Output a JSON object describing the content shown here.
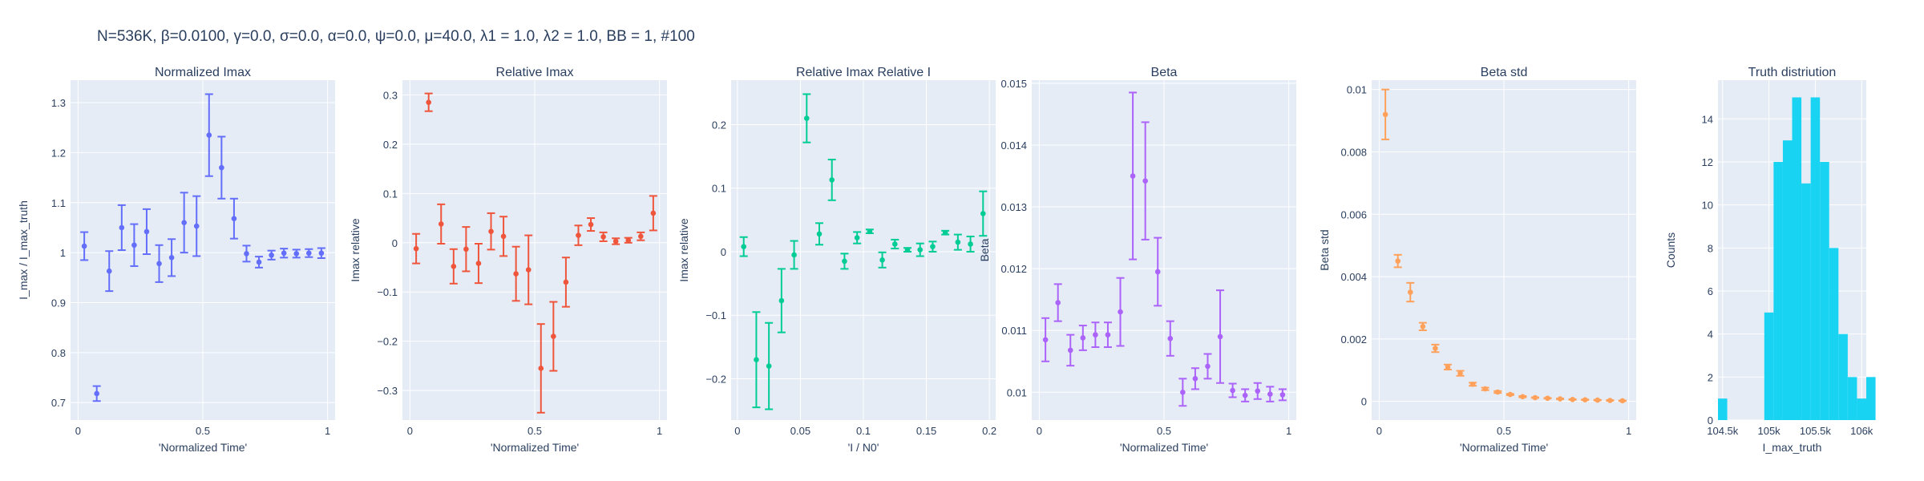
{
  "figure": {
    "title": "N=536K, β=0.0100, γ=0.0, σ=0.0,  α=0.0, ψ=0.0, μ=40.0, λ1 = 1.0, λ2 = 1.0, BB = 1, #100"
  },
  "chart_data": [
    {
      "type": "scatter",
      "title": "Normalized Imax",
      "xlabel": "'Normalized Time'",
      "ylabel": "I_max / I_max_truth",
      "color": "#636efa",
      "xlim": [
        -0.03,
        1.03
      ],
      "ylim": [
        0.665,
        1.345
      ],
      "xticks": [
        {
          "v": 0,
          "t": "0"
        },
        {
          "v": 0.5,
          "t": "0.5"
        },
        {
          "v": 1,
          "t": "1"
        }
      ],
      "yticks": [
        {
          "v": 0.7,
          "t": "0.7"
        },
        {
          "v": 0.8,
          "t": "0.8"
        },
        {
          "v": 0.9,
          "t": "0.9"
        },
        {
          "v": 1.0,
          "t": "1"
        },
        {
          "v": 1.1,
          "t": "1.1"
        },
        {
          "v": 1.2,
          "t": "1.2"
        },
        {
          "v": 1.3,
          "t": "1.3"
        }
      ],
      "x": [
        0.025,
        0.075,
        0.125,
        0.175,
        0.225,
        0.275,
        0.325,
        0.375,
        0.425,
        0.475,
        0.525,
        0.575,
        0.625,
        0.675,
        0.725,
        0.775,
        0.825,
        0.875,
        0.925,
        0.975
      ],
      "y": [
        1.013,
        0.718,
        0.963,
        1.05,
        1.015,
        1.042,
        0.978,
        0.99,
        1.06,
        1.053,
        1.235,
        1.17,
        1.068,
        0.998,
        0.981,
        0.995,
        0.999,
        0.998,
        0.999,
        0.999
      ],
      "err": [
        0.028,
        0.015,
        0.04,
        0.045,
        0.042,
        0.045,
        0.037,
        0.037,
        0.06,
        0.06,
        0.082,
        0.062,
        0.04,
        0.016,
        0.011,
        0.009,
        0.009,
        0.008,
        0.008,
        0.01
      ]
    },
    {
      "type": "scatter",
      "title": "Relative Imax",
      "xlabel": "'Normalized Time'",
      "ylabel": "Imax relative",
      "color": "#ef553b",
      "xlim": [
        -0.03,
        1.03
      ],
      "ylim": [
        -0.36,
        0.33
      ],
      "xticks": [
        {
          "v": 0,
          "t": "0"
        },
        {
          "v": 0.5,
          "t": "0.5"
        },
        {
          "v": 1,
          "t": "1"
        }
      ],
      "yticks": [
        {
          "v": -0.3,
          "t": "−0.3"
        },
        {
          "v": -0.2,
          "t": "−0.2"
        },
        {
          "v": -0.1,
          "t": "−0.1"
        },
        {
          "v": 0,
          "t": "0"
        },
        {
          "v": 0.1,
          "t": "0.1"
        },
        {
          "v": 0.2,
          "t": "0.2"
        },
        {
          "v": 0.3,
          "t": "0.3"
        }
      ],
      "x": [
        0.025,
        0.075,
        0.125,
        0.175,
        0.225,
        0.275,
        0.325,
        0.375,
        0.425,
        0.475,
        0.525,
        0.575,
        0.625,
        0.675,
        0.725,
        0.775,
        0.825,
        0.875,
        0.925,
        0.975
      ],
      "y": [
        -0.012,
        0.285,
        0.038,
        -0.048,
        -0.013,
        -0.042,
        0.023,
        0.013,
        -0.063,
        -0.055,
        -0.255,
        -0.19,
        -0.08,
        0.015,
        0.037,
        0.012,
        0.003,
        0.005,
        0.013,
        0.06
      ],
      "err": [
        0.03,
        0.018,
        0.04,
        0.035,
        0.045,
        0.04,
        0.037,
        0.04,
        0.055,
        0.07,
        0.09,
        0.07,
        0.05,
        0.02,
        0.013,
        0.009,
        0.006,
        0.005,
        0.008,
        0.035
      ]
    },
    {
      "type": "scatter",
      "title": "Relative Imax Relative I",
      "xlabel": "'I / N0'",
      "ylabel": "Imax relative",
      "color": "#00cc96",
      "xlim": [
        -0.005,
        0.205
      ],
      "ylim": [
        -0.265,
        0.27
      ],
      "xticks": [
        {
          "v": 0,
          "t": "0"
        },
        {
          "v": 0.05,
          "t": "0.05"
        },
        {
          "v": 0.1,
          "t": "0.1"
        },
        {
          "v": 0.15,
          "t": "0.15"
        },
        {
          "v": 0.2,
          "t": "0.2"
        }
      ],
      "yticks": [
        {
          "v": -0.2,
          "t": "−0.2"
        },
        {
          "v": -0.1,
          "t": "−0.1"
        },
        {
          "v": 0,
          "t": "0"
        },
        {
          "v": 0.1,
          "t": "0.1"
        },
        {
          "v": 0.2,
          "t": "0.2"
        }
      ],
      "x": [
        0.005,
        0.015,
        0.025,
        0.035,
        0.045,
        0.055,
        0.065,
        0.075,
        0.085,
        0.095,
        0.105,
        0.115,
        0.125,
        0.135,
        0.145,
        0.155,
        0.165,
        0.175,
        0.185,
        0.195
      ],
      "y": [
        0.008,
        -0.17,
        -0.18,
        -0.077,
        -0.005,
        0.21,
        0.028,
        0.113,
        -0.015,
        0.022,
        0.032,
        -0.013,
        0.012,
        0.003,
        0.003,
        0.008,
        0.03,
        0.015,
        0.012,
        0.06
      ],
      "err": [
        0.015,
        0.075,
        0.068,
        0.05,
        0.022,
        0.038,
        0.017,
        0.032,
        0.012,
        0.009,
        0.003,
        0.012,
        0.007,
        0.003,
        0.01,
        0.008,
        0.003,
        0.012,
        0.012,
        0.035
      ]
    },
    {
      "type": "scatter",
      "title": "Beta",
      "xlabel": "'Normalized Time'",
      "ylabel": "Beta",
      "color": "#ab63fa",
      "xlim": [
        -0.03,
        1.03
      ],
      "ylim": [
        0.00955,
        0.01505
      ],
      "xticks": [
        {
          "v": 0,
          "t": "0"
        },
        {
          "v": 0.5,
          "t": "0.5"
        },
        {
          "v": 1,
          "t": "1"
        }
      ],
      "yticks": [
        {
          "v": 0.01,
          "t": "0.01"
        },
        {
          "v": 0.011,
          "t": "0.011"
        },
        {
          "v": 0.012,
          "t": "0.012"
        },
        {
          "v": 0.013,
          "t": "0.013"
        },
        {
          "v": 0.014,
          "t": "0.014"
        },
        {
          "v": 0.015,
          "t": "0.015"
        }
      ],
      "x": [
        0.025,
        0.075,
        0.125,
        0.175,
        0.225,
        0.275,
        0.325,
        0.375,
        0.425,
        0.475,
        0.525,
        0.575,
        0.625,
        0.675,
        0.725,
        0.775,
        0.825,
        0.875,
        0.925,
        0.975
      ],
      "y": [
        0.01085,
        0.01145,
        0.01068,
        0.01088,
        0.01093,
        0.01093,
        0.0113,
        0.0135,
        0.01342,
        0.01195,
        0.01087,
        0.01,
        0.01022,
        0.01042,
        0.0109,
        0.01003,
        0.00995,
        0.01002,
        0.00997,
        0.00996
      ],
      "err": [
        0.00035,
        0.0003,
        0.00025,
        0.0002,
        0.0002,
        0.0002,
        0.00055,
        0.00135,
        0.00095,
        0.00055,
        0.00028,
        0.00022,
        0.00017,
        0.0002,
        0.00075,
        0.00011,
        0.0001,
        0.00013,
        0.00012,
        9e-05
      ]
    },
    {
      "type": "scatter",
      "title": "Beta std",
      "xlabel": "'Normalized Time'",
      "ylabel": "Beta std",
      "color": "#ffa15a",
      "xlim": [
        -0.03,
        1.03
      ],
      "ylim": [
        -0.0006,
        0.0103
      ],
      "xticks": [
        {
          "v": 0,
          "t": "0"
        },
        {
          "v": 0.5,
          "t": "0.5"
        },
        {
          "v": 1,
          "t": "1"
        }
      ],
      "yticks": [
        {
          "v": 0,
          "t": "0"
        },
        {
          "v": 0.002,
          "t": "0.002"
        },
        {
          "v": 0.004,
          "t": "0.004"
        },
        {
          "v": 0.006,
          "t": "0.006"
        },
        {
          "v": 0.008,
          "t": "0.008"
        },
        {
          "v": 0.01,
          "t": "0.01"
        }
      ],
      "x": [
        0.025,
        0.075,
        0.125,
        0.175,
        0.225,
        0.275,
        0.325,
        0.375,
        0.425,
        0.475,
        0.525,
        0.575,
        0.625,
        0.675,
        0.725,
        0.775,
        0.825,
        0.875,
        0.925,
        0.975
      ],
      "y": [
        0.0092,
        0.0045,
        0.0035,
        0.0024,
        0.0017,
        0.0011,
        0.0009,
        0.00055,
        0.0004,
        0.0003,
        0.00022,
        0.00015,
        0.00012,
        0.0001,
        8e-05,
        6e-05,
        5e-05,
        4e-05,
        3e-05,
        2e-05
      ],
      "err": [
        0.0008,
        0.0002,
        0.0003,
        0.00012,
        0.00012,
        8e-05,
        8e-05,
        5e-05,
        4e-05,
        3e-05,
        2e-05,
        2e-05,
        1e-05,
        1e-05,
        1e-05,
        1e-05,
        1e-05,
        1e-05,
        1e-05,
        1e-05
      ]
    },
    {
      "type": "bar",
      "title": "Truth distriution",
      "xlabel": "I_max_truth",
      "ylabel": "Counts",
      "color": "#19d3f3",
      "xlim": [
        104450,
        106050
      ],
      "ylim": [
        0,
        15.8
      ],
      "xticks": [
        {
          "v": 104500,
          "t": "104.5k"
        },
        {
          "v": 105000,
          "t": "105k"
        },
        {
          "v": 105500,
          "t": "105.5k"
        },
        {
          "v": 106000,
          "t": "106k"
        }
      ],
      "yticks": [
        {
          "v": 0,
          "t": "0"
        },
        {
          "v": 2,
          "t": "2"
        },
        {
          "v": 4,
          "t": "4"
        },
        {
          "v": 6,
          "t": "6"
        },
        {
          "v": 8,
          "t": "8"
        },
        {
          "v": 10,
          "t": "10"
        },
        {
          "v": 12,
          "t": "12"
        },
        {
          "v": 14,
          "t": "14"
        }
      ],
      "bin_start": 104450,
      "bin_width": 100,
      "counts": [
        1,
        0,
        0,
        0,
        0,
        5,
        12,
        13,
        15,
        11,
        15,
        12,
        8,
        4,
        2,
        1,
        2
      ]
    }
  ]
}
